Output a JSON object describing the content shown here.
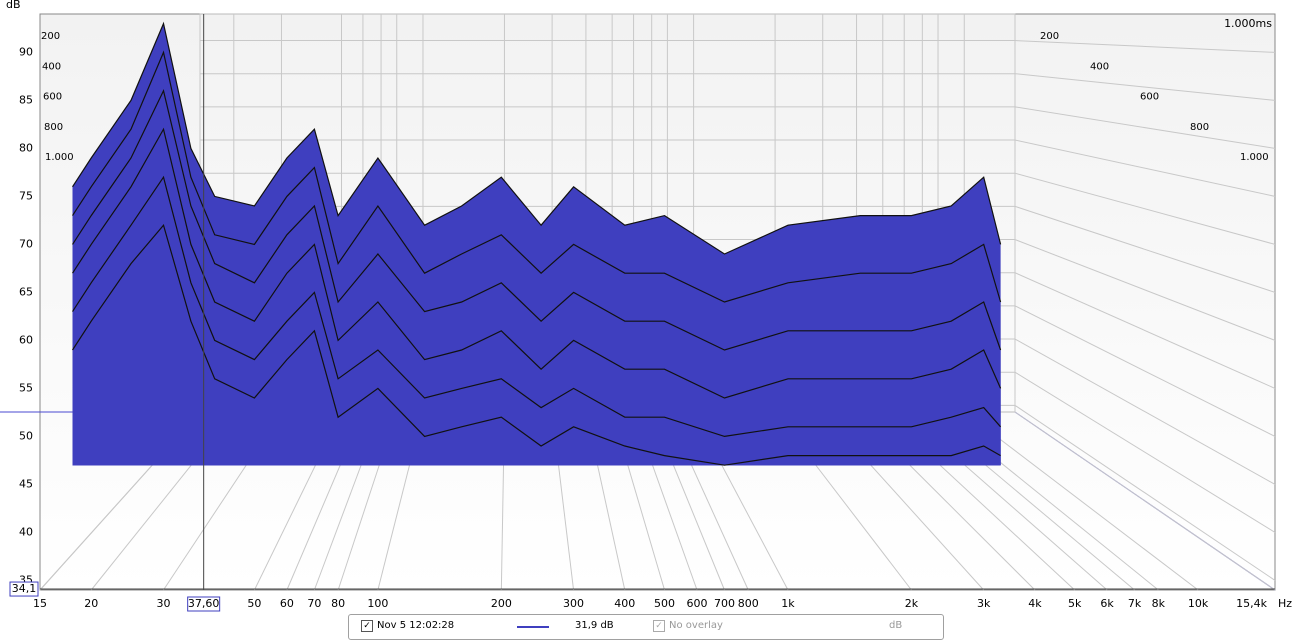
{
  "chart_data": {
    "type": "waterfall",
    "y_label": "dB",
    "x_unit": "Hz",
    "xlim": [
      15,
      15400
    ],
    "ylim": [
      34,
      94
    ],
    "log_x": true,
    "grid": true,
    "color": "#3f3fbf",
    "xticks": [
      15,
      20,
      30,
      50,
      60,
      70,
      80,
      100,
      200,
      300,
      400,
      500,
      600,
      700,
      800,
      {
        "value": 1000,
        "label": "1k"
      },
      {
        "value": 2000,
        "label": "2k"
      },
      {
        "value": 3000,
        "label": "3k"
      },
      {
        "value": 4000,
        "label": "4k"
      },
      {
        "value": 5000,
        "label": "5k"
      },
      {
        "value": 6000,
        "label": "6k"
      },
      {
        "value": 7000,
        "label": "7k"
      },
      {
        "value": 8000,
        "label": "8k"
      },
      {
        "value": 10000,
        "label": "10k"
      },
      {
        "value": 15400,
        "label": "15,4k"
      }
    ],
    "yticks": [
      35,
      40,
      45,
      50,
      55,
      60,
      65,
      70,
      75,
      80,
      85,
      90
    ],
    "zlim": [
      0,
      1000
    ],
    "zticks": [
      200,
      400,
      600,
      800,
      {
        "value": 1000,
        "label": "1.000"
      }
    ],
    "z_end_label": "1.000ms",
    "cursor": {
      "x": {
        "value": 37.6,
        "label": "37,60"
      },
      "y": {
        "value": 34.1,
        "label": "34,1"
      }
    },
    "x": [
      18,
      20,
      25,
      30,
      35,
      40,
      50,
      60,
      70,
      80,
      100,
      130,
      160,
      200,
      250,
      300,
      400,
      500,
      700,
      1000,
      1500,
      2000,
      2500,
      3000,
      3300
    ],
    "series": [
      {
        "values": [
          76,
          79,
          85,
          93,
          80,
          75,
          74,
          79,
          82,
          73,
          79,
          72,
          74,
          77,
          72,
          76,
          72,
          73,
          69,
          72,
          73,
          73,
          74,
          77,
          70
        ]
      },
      {
        "values": [
          73,
          76,
          82,
          90,
          77,
          71,
          70,
          75,
          78,
          68,
          74,
          67,
          69,
          71,
          67,
          70,
          67,
          67,
          64,
          66,
          67,
          67,
          68,
          70,
          64
        ]
      },
      {
        "values": [
          70,
          73,
          79,
          86,
          74,
          68,
          66,
          71,
          74,
          64,
          69,
          63,
          64,
          66,
          62,
          65,
          62,
          62,
          59,
          61,
          61,
          61,
          62,
          64,
          59
        ]
      },
      {
        "values": [
          67,
          70,
          76,
          82,
          70,
          64,
          62,
          67,
          70,
          60,
          64,
          58,
          59,
          61,
          57,
          60,
          57,
          57,
          54,
          56,
          56,
          56,
          57,
          59,
          55
        ]
      },
      {
        "values": [
          63,
          66,
          72,
          77,
          66,
          60,
          58,
          62,
          65,
          56,
          59,
          54,
          55,
          56,
          53,
          55,
          52,
          52,
          50,
          51,
          51,
          51,
          52,
          53,
          51
        ]
      },
      {
        "values": [
          59,
          62,
          68,
          72,
          62,
          56,
          54,
          58,
          61,
          52,
          55,
          50,
          51,
          52,
          49,
          51,
          49,
          48,
          47,
          48,
          48,
          48,
          48,
          49,
          48
        ]
      }
    ]
  },
  "legend": {
    "measurement": "Nov 5 12:02:28",
    "level": "31,9 dB",
    "overlay": "No overlay",
    "unit": "dB"
  }
}
